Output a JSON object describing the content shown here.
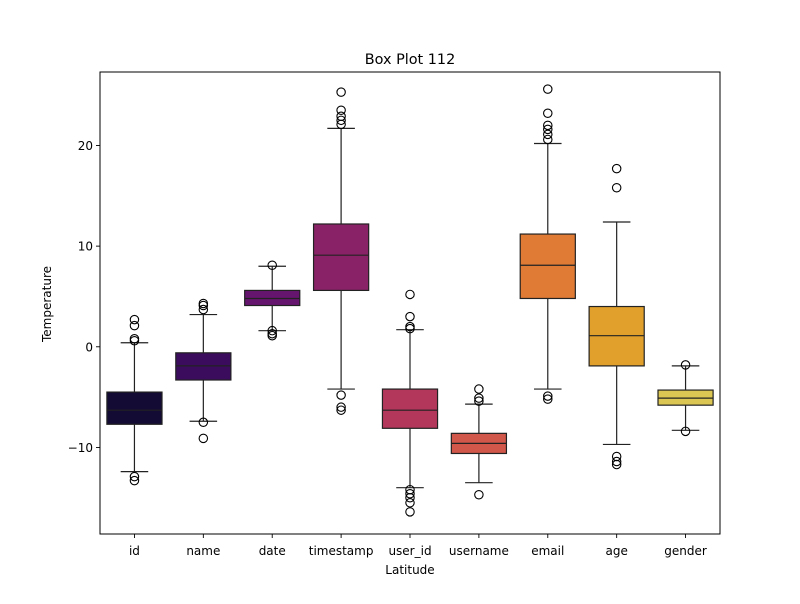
{
  "chart_data": {
    "type": "box",
    "title": "Box Plot 112",
    "xlabel": "Latitude",
    "ylabel": "Temperature",
    "ylim": [
      -18.6,
      27.3
    ],
    "yticks": [
      -10,
      0,
      10,
      20
    ],
    "grid": false,
    "legend": "none",
    "categories": [
      "id",
      "name",
      "date",
      "timestamp",
      "user_id",
      "username",
      "email",
      "age",
      "gender"
    ],
    "boxes": [
      {
        "label": "id",
        "color": "#140b35",
        "whisker_low": -12.4,
        "q1": -7.7,
        "median": -6.3,
        "q3": -4.5,
        "whisker_high": 0.4,
        "outliers": [
          2.7,
          2.1,
          0.8,
          0.6,
          -12.9,
          -13.3
        ]
      },
      {
        "label": "name",
        "color": "#3b0c5e",
        "whisker_low": -7.4,
        "q1": -3.3,
        "median": -1.9,
        "q3": -0.6,
        "whisker_high": 3.2,
        "outliers": [
          4.3,
          4.1,
          3.7,
          -7.5,
          -9.1
        ]
      },
      {
        "label": "date",
        "color": "#65156e",
        "whisker_low": 1.6,
        "q1": 4.1,
        "median": 4.8,
        "q3": 5.6,
        "whisker_high": 8.0,
        "outliers": [
          8.1,
          1.6,
          1.3,
          1.1
        ]
      },
      {
        "label": "timestamp",
        "color": "#8a2267",
        "whisker_low": -4.2,
        "q1": 5.6,
        "median": 9.1,
        "q3": 12.2,
        "whisker_high": 21.7,
        "outliers": [
          25.3,
          23.5,
          22.9,
          22.5,
          22.1,
          -4.8,
          -6.0,
          -6.3
        ]
      },
      {
        "label": "user_id",
        "color": "#b2375b",
        "whisker_low": -14.0,
        "q1": -8.1,
        "median": -6.3,
        "q3": -4.2,
        "whisker_high": 1.7,
        "outliers": [
          5.2,
          3.0,
          2.0,
          1.8,
          -14.2,
          -14.6,
          -15.0,
          -15.5,
          -16.4
        ]
      },
      {
        "label": "username",
        "color": "#d1574a",
        "whisker_low": -13.5,
        "q1": -10.6,
        "median": -9.6,
        "q3": -8.6,
        "whisker_high": -5.7,
        "outliers": [
          -4.2,
          -5.1,
          -5.4,
          -14.7
        ]
      },
      {
        "label": "email",
        "color": "#e07b35",
        "whisker_low": -4.2,
        "q1": 4.8,
        "median": 8.1,
        "q3": 11.2,
        "whisker_high": 20.2,
        "outliers": [
          25.6,
          23.2,
          22.0,
          21.6,
          21.1,
          20.6,
          -4.9,
          -5.2
        ]
      },
      {
        "label": "age",
        "color": "#e19f2b",
        "whisker_low": -9.7,
        "q1": -1.9,
        "median": 1.1,
        "q3": 4.0,
        "whisker_high": 12.4,
        "outliers": [
          17.7,
          15.8,
          -10.9,
          -11.4,
          -11.7
        ]
      },
      {
        "label": "gender",
        "color": "#dcc653",
        "whisker_low": -8.3,
        "q1": -5.8,
        "median": -5.1,
        "q3": -4.3,
        "whisker_high": -1.9,
        "outliers": [
          -1.8,
          -8.4
        ]
      }
    ]
  }
}
